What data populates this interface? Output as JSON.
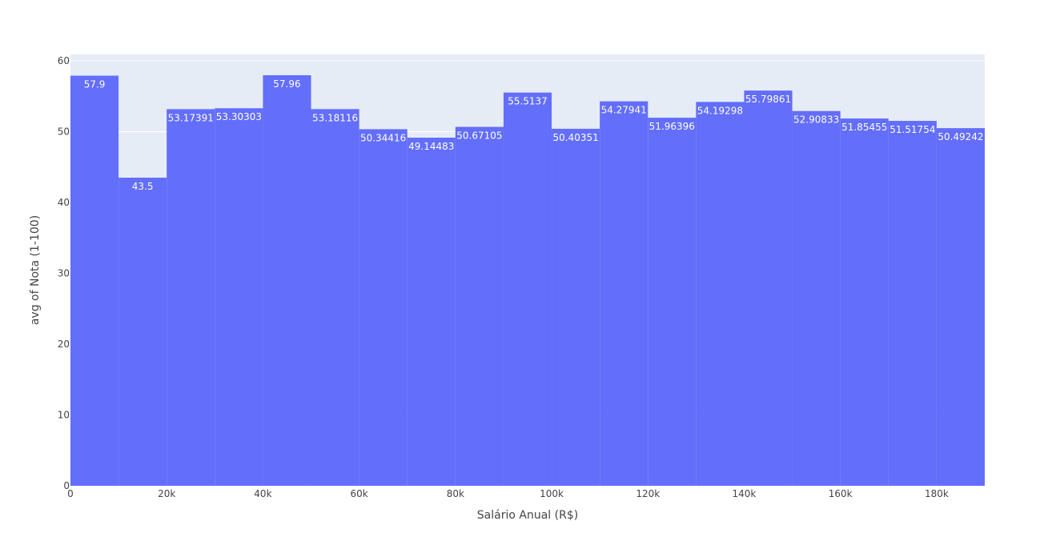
{
  "chart_data": {
    "type": "bar",
    "xlabel": "Salário Anual (R$)",
    "ylabel": "avg of Nota (1-100)",
    "xlim": [
      0,
      190000
    ],
    "ylim": [
      0,
      60.9
    ],
    "bin_width": 10000,
    "x_ticks": [
      {
        "value": 0,
        "label": "0"
      },
      {
        "value": 20000,
        "label": "20k"
      },
      {
        "value": 40000,
        "label": "40k"
      },
      {
        "value": 60000,
        "label": "60k"
      },
      {
        "value": 80000,
        "label": "80k"
      },
      {
        "value": 100000,
        "label": "100k"
      },
      {
        "value": 120000,
        "label": "120k"
      },
      {
        "value": 140000,
        "label": "140k"
      },
      {
        "value": 160000,
        "label": "160k"
      },
      {
        "value": 180000,
        "label": "180k"
      }
    ],
    "y_ticks": [
      {
        "value": 0,
        "label": "0"
      },
      {
        "value": 10,
        "label": "10"
      },
      {
        "value": 20,
        "label": "20"
      },
      {
        "value": 30,
        "label": "30"
      },
      {
        "value": 40,
        "label": "40"
      },
      {
        "value": 50,
        "label": "50"
      },
      {
        "value": 60,
        "label": "60"
      }
    ],
    "bins": [
      {
        "start": 0,
        "end": 10000,
        "value": 57.9,
        "label": "57.9"
      },
      {
        "start": 10000,
        "end": 20000,
        "value": 43.5,
        "label": "43.5"
      },
      {
        "start": 20000,
        "end": 30000,
        "value": 53.17391,
        "label": "53.17391"
      },
      {
        "start": 30000,
        "end": 40000,
        "value": 53.30303,
        "label": "53.30303"
      },
      {
        "start": 40000,
        "end": 50000,
        "value": 57.96,
        "label": "57.96"
      },
      {
        "start": 50000,
        "end": 60000,
        "value": 53.18116,
        "label": "53.18116"
      },
      {
        "start": 60000,
        "end": 70000,
        "value": 50.34416,
        "label": "50.34416"
      },
      {
        "start": 70000,
        "end": 80000,
        "value": 49.14483,
        "label": "49.14483"
      },
      {
        "start": 80000,
        "end": 90000,
        "value": 50.67105,
        "label": "50.67105"
      },
      {
        "start": 90000,
        "end": 100000,
        "value": 55.5137,
        "label": "55.5137"
      },
      {
        "start": 100000,
        "end": 110000,
        "value": 50.40351,
        "label": "50.40351"
      },
      {
        "start": 110000,
        "end": 120000,
        "value": 54.27941,
        "label": "54.27941"
      },
      {
        "start": 120000,
        "end": 130000,
        "value": 51.96396,
        "label": "51.96396"
      },
      {
        "start": 130000,
        "end": 140000,
        "value": 54.19298,
        "label": "54.19298"
      },
      {
        "start": 140000,
        "end": 150000,
        "value": 55.79861,
        "label": "55.79861"
      },
      {
        "start": 150000,
        "end": 160000,
        "value": 52.90833,
        "label": "52.90833"
      },
      {
        "start": 160000,
        "end": 170000,
        "value": 51.85455,
        "label": "51.85455"
      },
      {
        "start": 170000,
        "end": 180000,
        "value": 51.51754,
        "label": "51.51754"
      },
      {
        "start": 180000,
        "end": 190000,
        "value": 50.49242,
        "label": "50.49242"
      }
    ],
    "grid": true,
    "legend": "none",
    "colors": {
      "bar": "#636efa",
      "plot_background": "#e5ecf6",
      "gridline": "#ffffff",
      "bar_label": "#ffffff",
      "axis_text": "#444444"
    }
  }
}
